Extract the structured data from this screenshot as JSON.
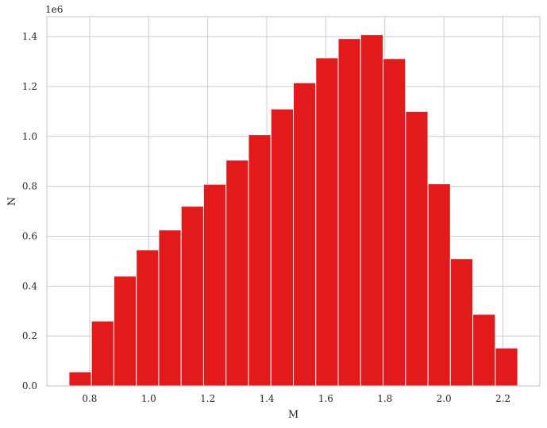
{
  "chart_data": {
    "type": "bar",
    "subtype": "histogram",
    "xlabel": "M",
    "ylabel": "N",
    "y_offset_label": "1e6",
    "bar_color": "#e31a1c",
    "grid": true,
    "xlim": [
      0.655,
      2.325
    ],
    "ylim": [
      0,
      1.48
    ],
    "x_ticks": [
      {
        "value": 0.8,
        "label": "0.8"
      },
      {
        "value": 1.0,
        "label": "1.0"
      },
      {
        "value": 1.2,
        "label": "1.2"
      },
      {
        "value": 1.4,
        "label": "1.4"
      },
      {
        "value": 1.6,
        "label": "1.6"
      },
      {
        "value": 1.8,
        "label": "1.8"
      },
      {
        "value": 2.0,
        "label": "2.0"
      },
      {
        "value": 2.2,
        "label": "2.2"
      }
    ],
    "y_ticks": [
      {
        "value": 0.0,
        "label": "0.0"
      },
      {
        "value": 0.2,
        "label": "0.2"
      },
      {
        "value": 0.4,
        "label": "0.4"
      },
      {
        "value": 0.6,
        "label": "0.6"
      },
      {
        "value": 0.8,
        "label": "0.8"
      },
      {
        "value": 1.0,
        "label": "1.0"
      },
      {
        "value": 1.2,
        "label": "1.2"
      },
      {
        "value": 1.4,
        "label": "1.4"
      }
    ],
    "bins": [
      {
        "x0": 0.73,
        "x1": 0.806,
        "value": 0.056
      },
      {
        "x0": 0.806,
        "x1": 0.882,
        "value": 0.26
      },
      {
        "x0": 0.882,
        "x1": 0.958,
        "value": 0.44
      },
      {
        "x0": 0.958,
        "x1": 1.034,
        "value": 0.545
      },
      {
        "x0": 1.034,
        "x1": 1.11,
        "value": 0.625
      },
      {
        "x0": 1.11,
        "x1": 1.186,
        "value": 0.72
      },
      {
        "x0": 1.186,
        "x1": 1.262,
        "value": 0.808
      },
      {
        "x0": 1.262,
        "x1": 1.338,
        "value": 0.905
      },
      {
        "x0": 1.338,
        "x1": 1.414,
        "value": 1.007
      },
      {
        "x0": 1.414,
        "x1": 1.49,
        "value": 1.11
      },
      {
        "x0": 1.49,
        "x1": 1.566,
        "value": 1.215
      },
      {
        "x0": 1.566,
        "x1": 1.642,
        "value": 1.315
      },
      {
        "x0": 1.642,
        "x1": 1.718,
        "value": 1.392
      },
      {
        "x0": 1.718,
        "x1": 1.794,
        "value": 1.408
      },
      {
        "x0": 1.794,
        "x1": 1.87,
        "value": 1.312
      },
      {
        "x0": 1.87,
        "x1": 1.946,
        "value": 1.1
      },
      {
        "x0": 1.946,
        "x1": 2.022,
        "value": 0.81
      },
      {
        "x0": 2.022,
        "x1": 2.098,
        "value": 0.51
      },
      {
        "x0": 2.098,
        "x1": 2.174,
        "value": 0.287
      },
      {
        "x0": 2.174,
        "x1": 2.25,
        "value": 0.152
      }
    ]
  }
}
